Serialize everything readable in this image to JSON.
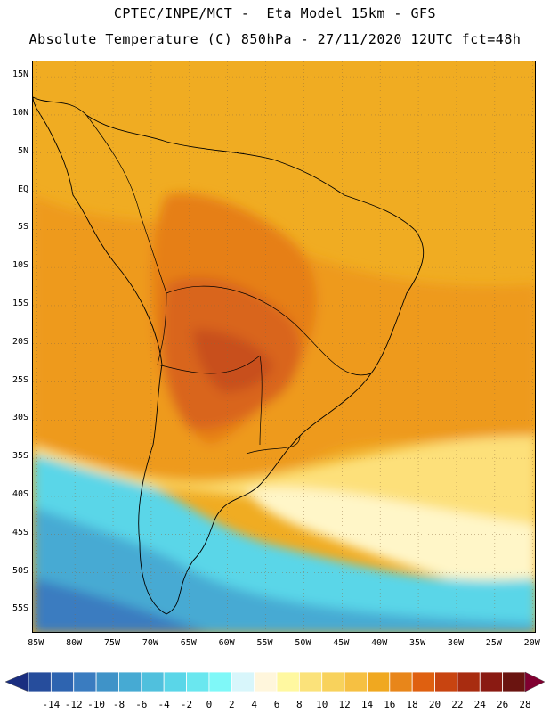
{
  "title_line1": "CPTEC/INPE/MCT -  Eta Model 15km - GFS",
  "title_line2": "Absolute Temperature (C) 850hPa - 27/11/2020 12UTC fct=48h",
  "map": {
    "lat_labels": [
      "15N",
      "10N",
      "5N",
      "EQ",
      "5S",
      "10S",
      "15S",
      "20S",
      "25S",
      "30S",
      "35S",
      "40S",
      "45S",
      "50S",
      "55S"
    ],
    "lon_labels": [
      "85W",
      "80W",
      "75W",
      "70W",
      "65W",
      "60W",
      "55W",
      "50W",
      "45W",
      "40W",
      "35W",
      "30W",
      "25W",
      "20W"
    ],
    "extent": {
      "lon_min": -85.5,
      "lon_max": -19.5,
      "lat_min": -58,
      "lat_max": 17
    }
  },
  "colorbar": {
    "labels": [
      "-14",
      "-12",
      "-10",
      "-8",
      "-6",
      "-4",
      "-2",
      "0",
      "2",
      "4",
      "6",
      "8",
      "10",
      "12",
      "14",
      "16",
      "18",
      "20",
      "22",
      "24",
      "26",
      "28"
    ],
    "colors": [
      "#1a2e80",
      "#264d9c",
      "#2e64b0",
      "#3a7cc0",
      "#3f93c8",
      "#46aad3",
      "#50c0dd",
      "#5ad6e8",
      "#6ae7ef",
      "#7ff8f8",
      "#d8f6fb",
      "#fff6dc",
      "#fff8a0",
      "#fbe27a",
      "#f8d25c",
      "#f6c042",
      "#f0a820",
      "#e8861a",
      "#df6010",
      "#c84410",
      "#a82c10",
      "#8a1a12",
      "#6a1410",
      "#800030"
    ]
  }
}
